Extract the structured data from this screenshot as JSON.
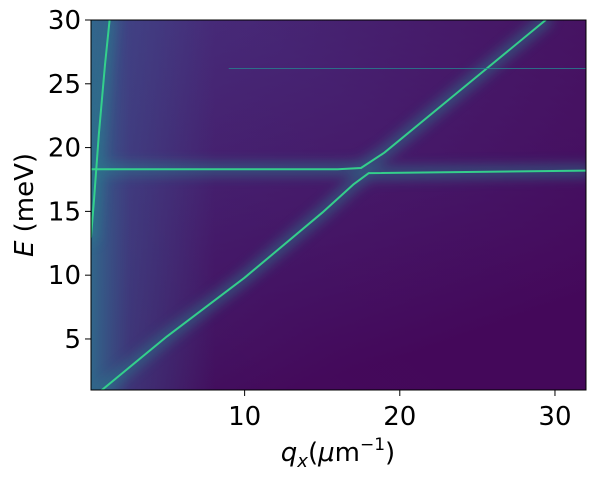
{
  "chart_data": {
    "type": "heatmap",
    "title": "",
    "xlabel": {
      "symbol": "q",
      "subscript": "x",
      "unit_open": "(",
      "unit_mu": "μ",
      "unit_m": "m",
      "unit_exp": "−1",
      "unit_close": ")"
    },
    "ylabel": {
      "symbol": "E",
      "unit": " (meV)"
    },
    "xlim": [
      0.1,
      32
    ],
    "ylim": [
      1,
      30
    ],
    "x_ticks": [
      {
        "value": 10,
        "label": "10"
      },
      {
        "value": 20,
        "label": "20"
      },
      {
        "value": 30,
        "label": "30"
      }
    ],
    "y_ticks": [
      {
        "value": 5,
        "label": "5"
      },
      {
        "value": 10,
        "label": "10"
      },
      {
        "value": 15,
        "label": "15"
      },
      {
        "value": 20,
        "label": "20"
      },
      {
        "value": 25,
        "label": "25"
      },
      {
        "value": 30,
        "label": "30"
      }
    ],
    "grid": false,
    "colormap": "viridis",
    "colors": {
      "background_low": "#440154",
      "background_mid": "#472c7a",
      "background_high": "#3b518b",
      "line_bright": "#35d68c",
      "line_dim": "#26828e"
    },
    "features": [
      {
        "name": "steep-dispersion-line",
        "points": [
          [
            0.1,
            13.0
          ],
          [
            0.3,
            16.0
          ],
          [
            0.6,
            21.0
          ],
          [
            1.0,
            26.5
          ],
          [
            1.3,
            30.0
          ]
        ]
      },
      {
        "name": "lower-polariton-branch",
        "points": [
          [
            0.8,
            1.0
          ],
          [
            5.0,
            5.2
          ],
          [
            10.0,
            9.8
          ],
          [
            15.0,
            14.9
          ],
          [
            17.0,
            17.1
          ],
          [
            18.0,
            18.0
          ],
          [
            32.0,
            18.2
          ]
        ]
      },
      {
        "name": "upper-polariton-branch",
        "points": [
          [
            0.1,
            18.3
          ],
          [
            16.0,
            18.3
          ],
          [
            17.5,
            18.4
          ],
          [
            19.0,
            19.6
          ],
          [
            24.0,
            24.6
          ],
          [
            29.4,
            30.0
          ]
        ]
      },
      {
        "name": "upper-flat-mode",
        "points": [
          [
            9.0,
            26.2
          ],
          [
            32.0,
            26.2
          ]
        ]
      }
    ]
  }
}
